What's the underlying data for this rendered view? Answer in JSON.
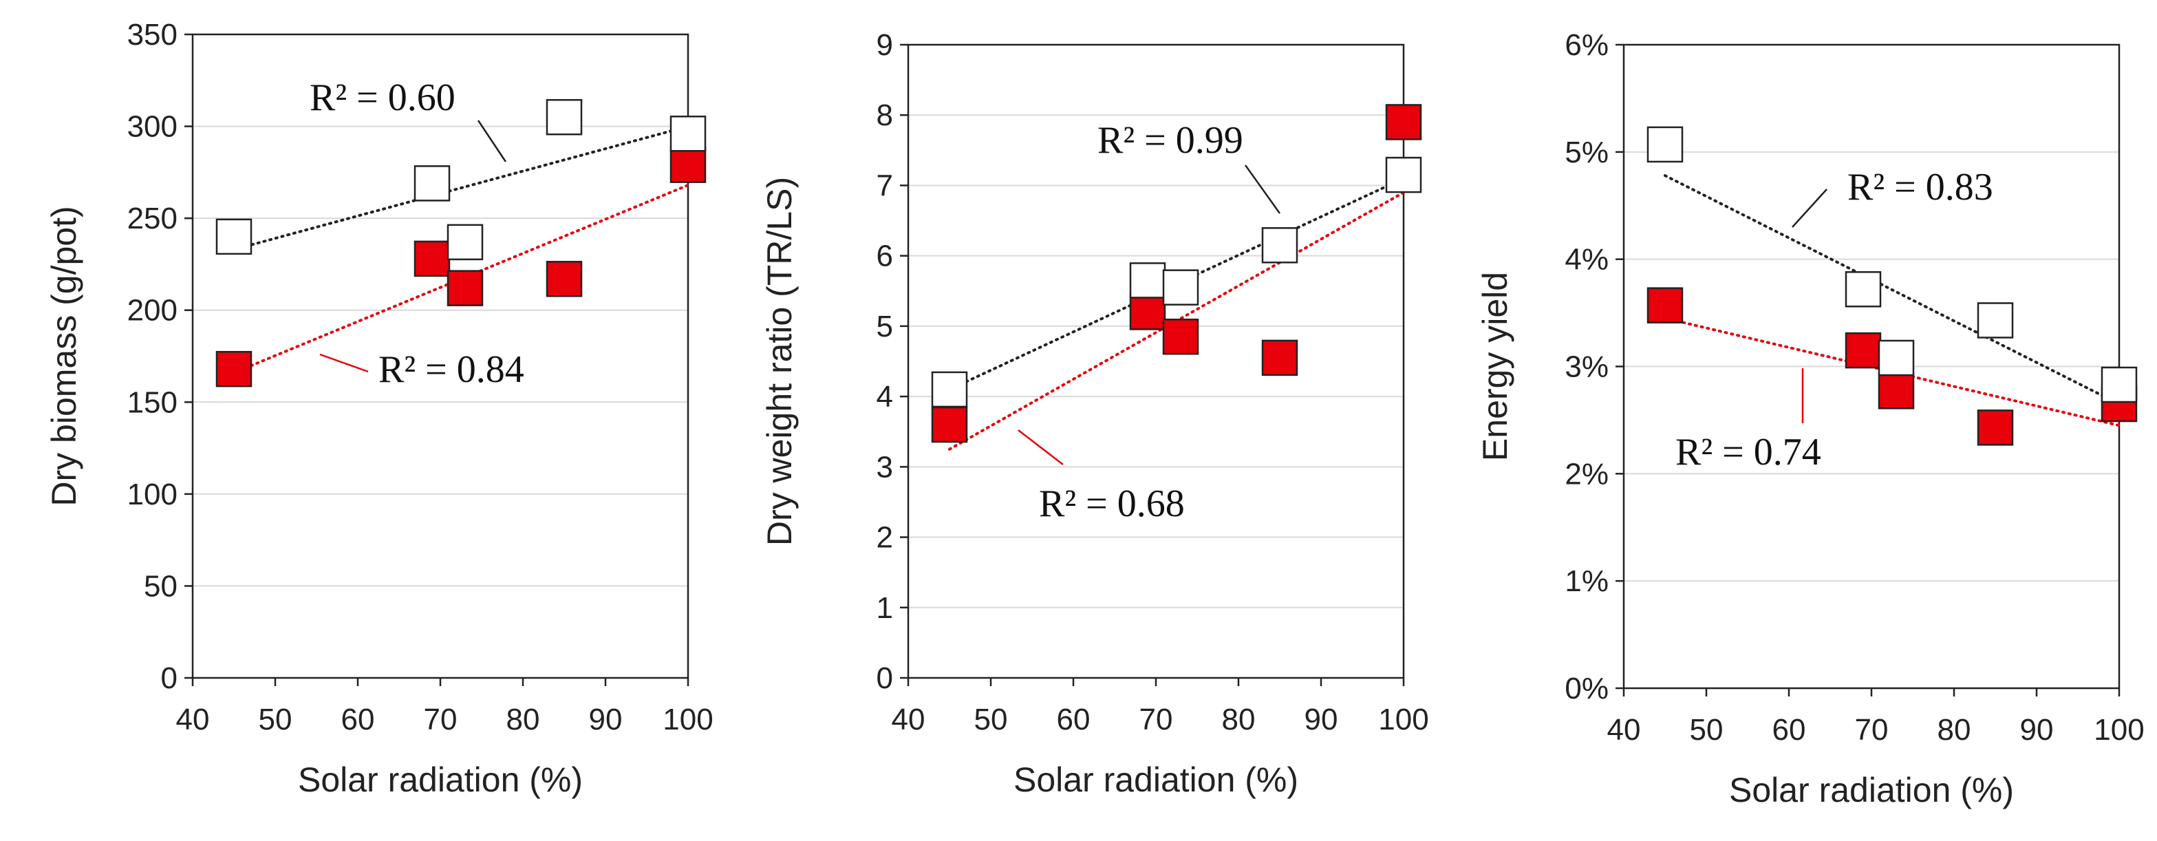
{
  "colors": {
    "series_open": "#ffffff",
    "series_open_stroke": "#222222",
    "series_filled": "#e8000b",
    "series_filled_stroke": "#222222",
    "trend_open": "#222222",
    "trend_filled": "#e8000b",
    "grid": "#d9d9d9"
  },
  "chart_data": [
    {
      "type": "scatter",
      "xlabel": "Solar radiation (%)",
      "ylabel": "Dry biomass (g/pot)",
      "xlim": [
        40,
        100
      ],
      "ylim": [
        0,
        350
      ],
      "xticks": [
        "40",
        "50",
        "60",
        "70",
        "80",
        "90",
        "100"
      ],
      "yticks": [
        "0",
        "50",
        "100",
        "150",
        "200",
        "250",
        "300",
        "350"
      ],
      "grid": true,
      "series": [
        {
          "name": "open",
          "marker": "open-square",
          "x": [
            45,
            69,
            73,
            85,
            100
          ],
          "y": [
            240,
            269,
            237,
            305,
            296
          ],
          "trend": {
            "x": [
              45,
              100
            ],
            "y": [
              233,
              300
            ]
          },
          "r2_label": "R² = 0.60"
        },
        {
          "name": "filled",
          "marker": "filled-square",
          "x": [
            45,
            69,
            73,
            85,
            100
          ],
          "y": [
            168,
            228,
            212,
            217,
            279
          ],
          "trend": {
            "x": [
              45,
              100
            ],
            "y": [
              166,
              268
            ]
          },
          "r2_label": "R² = 0.84"
        }
      ]
    },
    {
      "type": "scatter",
      "xlabel": "Solar radiation (%)",
      "ylabel": "Dry weight ratio (TR/LS)",
      "xlim": [
        40,
        100
      ],
      "ylim": [
        0,
        9
      ],
      "xticks": [
        "40",
        "50",
        "60",
        "70",
        "80",
        "90",
        "100"
      ],
      "yticks": [
        "0",
        "1",
        "2",
        "3",
        "4",
        "5",
        "6",
        "7",
        "8",
        "9"
      ],
      "grid": true,
      "series": [
        {
          "name": "open",
          "marker": "open-square",
          "x": [
            45,
            69,
            73,
            85,
            100
          ],
          "y": [
            4.1,
            5.65,
            5.55,
            6.15,
            7.15
          ],
          "trend": {
            "x": [
              45,
              100
            ],
            "y": [
              4.1,
              7.1
            ]
          },
          "r2_label": "R² = 0.99"
        },
        {
          "name": "filled",
          "marker": "filled-square",
          "x": [
            45,
            69,
            73,
            85,
            100
          ],
          "y": [
            3.6,
            5.2,
            4.85,
            4.55,
            7.9
          ],
          "trend": {
            "x": [
              45,
              100
            ],
            "y": [
              3.25,
              6.9
            ]
          },
          "r2_label": "R² = 0.68"
        }
      ]
    },
    {
      "type": "scatter",
      "xlabel": "Solar radiation (%)",
      "ylabel": "Energy yield",
      "xlim": [
        40,
        100
      ],
      "ylim": [
        0,
        6
      ],
      "xticks": [
        "40",
        "50",
        "60",
        "70",
        "80",
        "90",
        "100"
      ],
      "yticks": [
        "0%",
        "1%",
        "2%",
        "3%",
        "4%",
        "5%",
        "6%"
      ],
      "grid": true,
      "series": [
        {
          "name": "open",
          "marker": "open-square",
          "x": [
            45,
            69,
            73,
            85,
            100
          ],
          "y": [
            5.07,
            3.72,
            3.08,
            3.43,
            2.83
          ],
          "trend": {
            "x": [
              45,
              100
            ],
            "y": [
              4.78,
              2.65
            ]
          },
          "r2_label": "R² = 0.83"
        },
        {
          "name": "filled",
          "marker": "filled-square",
          "x": [
            45,
            69,
            73,
            85,
            100
          ],
          "y": [
            3.57,
            3.15,
            2.77,
            2.43,
            2.65
          ],
          "trend": {
            "x": [
              45,
              100
            ],
            "y": [
              3.45,
              2.45
            ]
          },
          "r2_label": "R² = 0.74"
        }
      ]
    }
  ]
}
